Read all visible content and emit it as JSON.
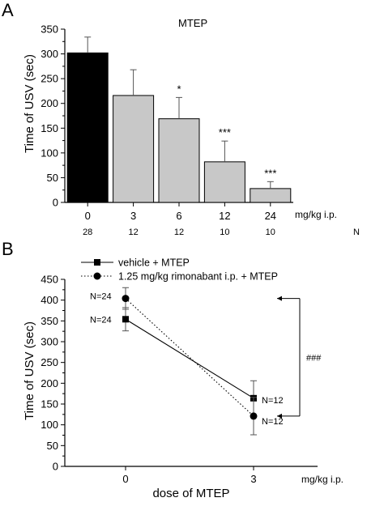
{
  "chart_data": [
    {
      "panel": "A",
      "type": "bar",
      "title": "MTEP",
      "ylabel": "Time of USV (sec)",
      "xunit": "mg/kg i.p.",
      "n_label": "N",
      "ylim": [
        0,
        350
      ],
      "yticks": [
        "0",
        "50",
        "100",
        "150",
        "200",
        "250",
        "300",
        "350"
      ],
      "categories": [
        "0",
        "3",
        "6",
        "12",
        "24"
      ],
      "values": [
        302,
        216,
        169,
        82,
        28
      ],
      "errors": [
        32,
        52,
        43,
        42,
        14
      ],
      "n": [
        "28",
        "12",
        "12",
        "10",
        "10"
      ],
      "significance": [
        "",
        "",
        "*",
        "***",
        "***"
      ],
      "colors": [
        "#000000",
        "#c8c8c8",
        "#c8c8c8",
        "#c8c8c8",
        "#c8c8c8"
      ]
    },
    {
      "panel": "B",
      "type": "line",
      "ylabel": "Time of USV (sec)",
      "xlabel": "dose of MTEP",
      "xunit": "mg/kg i.p.",
      "ylim": [
        0,
        450
      ],
      "yticks": [
        "0",
        "50",
        "100",
        "150",
        "200",
        "250",
        "300",
        "350",
        "400",
        "450"
      ],
      "x": [
        "0",
        "3"
      ],
      "series": [
        {
          "name": "vehicle + MTEP",
          "marker": "square",
          "line": "solid",
          "values": [
            354,
            164
          ],
          "errors": [
            28,
            42
          ],
          "n_labels": [
            "N=24",
            "N=12"
          ]
        },
        {
          "name": "1.25 mg/kg rimonabant i.p. + MTEP",
          "marker": "circle",
          "line": "dotted",
          "values": [
            404,
            121
          ],
          "errors": [
            26,
            45
          ],
          "n_labels": [
            "N=24",
            "N=12"
          ]
        }
      ],
      "annotation": "###"
    }
  ]
}
